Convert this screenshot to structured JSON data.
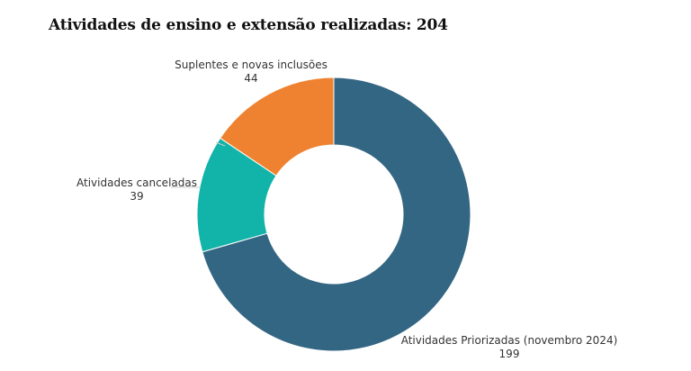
{
  "chart_data": {
    "type": "pie",
    "donut": true,
    "title": "Atividades de ensino e extensão realizadas: 204",
    "slices": [
      {
        "label": "Atividades Priorizadas (novembro 2024)",
        "value": 199,
        "color": "#336683"
      },
      {
        "label": "Atividades canceladas",
        "value": 39,
        "color": "#12b3a8"
      },
      {
        "label": "Suplentes e novas inclusões",
        "value": 44,
        "color": "#ef8230"
      }
    ],
    "start_angle": "top",
    "direction": "clockwise",
    "legend": "none"
  }
}
